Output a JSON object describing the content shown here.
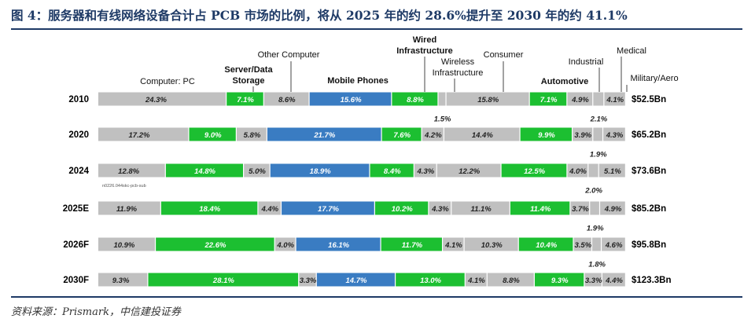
{
  "title": "图 4：服务器和有线网络设备合计占 PCB 市场的比例，将从 2025 年的约 28.6%提升至 2030 年的约 41.1%",
  "source": "资料来源：Prismark，中信建投证券",
  "watermark_note": "n0226.044skc-pcb-sub",
  "colors": {
    "gray": "#c0c0c0",
    "green": "#1cbf31",
    "blue": "#3a7cc2",
    "title": "#1e3a66"
  },
  "chart_data": {
    "type": "bar",
    "orientation": "horizontal",
    "stacked": "percent",
    "categories": [
      "Computer: PC",
      "Server/Data Storage",
      "Other Computer",
      "Mobile Phones",
      "Wired Infrastructure",
      "Wireless Infrastructure",
      "Consumer",
      "Automotive",
      "Industrial",
      "Medical",
      "Military/Aero"
    ],
    "category_colors": [
      "gray",
      "green",
      "gray",
      "blue",
      "green",
      "gray",
      "gray",
      "green",
      "gray",
      "gray",
      "gray"
    ],
    "bold_categories": [
      "Server/Data Storage",
      "Mobile Phones",
      "Wired Infrastructure",
      "Automotive"
    ],
    "rows": [
      {
        "year": "2010",
        "total": "$52.5Bn",
        "values": [
          24.3,
          7.1,
          8.6,
          15.6,
          8.8,
          1.5,
          15.8,
          7.1,
          4.9,
          2.1,
          4.1
        ],
        "labels": [
          "24.3%",
          "7.1%",
          "8.6%",
          "15.6%",
          "8.8%",
          "1.5%",
          "15.8%",
          "7.1%",
          "4.9%",
          "2.1%",
          "4.1%"
        ]
      },
      {
        "year": "2020",
        "total": "$65.2Bn",
        "values": [
          17.2,
          9.0,
          5.8,
          21.7,
          7.6,
          4.2,
          14.4,
          9.9,
          3.9,
          1.9,
          4.3
        ],
        "labels": [
          "17.2%",
          "9.0%",
          "5.8%",
          "21.7%",
          "7.6%",
          "4.2%",
          "14.4%",
          "9.9%",
          "3.9%",
          "1.9%",
          "4.3%"
        ]
      },
      {
        "year": "2024",
        "total": "$73.6Bn",
        "values": [
          12.8,
          14.8,
          5.0,
          18.9,
          8.4,
          4.3,
          12.2,
          12.5,
          4.0,
          2.0,
          5.1
        ],
        "labels": [
          "12.8%",
          "14.8%",
          "5.0%",
          "18.9%",
          "8.4%",
          "4.3%",
          "12.2%",
          "12.5%",
          "4.0%",
          "2.0%",
          "5.1%"
        ]
      },
      {
        "year": "2025E",
        "total": "$85.2Bn",
        "values": [
          11.9,
          18.4,
          4.4,
          17.7,
          10.2,
          4.3,
          11.1,
          11.4,
          3.7,
          1.9,
          4.9
        ],
        "labels": [
          "11.9%",
          "18.4%",
          "4.4%",
          "17.7%",
          "10.2%",
          "4.3%",
          "11.1%",
          "11.4%",
          "3.7%",
          "1.9%",
          "4.9%"
        ]
      },
      {
        "year": "2026F",
        "total": "$95.8Bn",
        "values": [
          10.9,
          22.6,
          4.0,
          16.1,
          11.7,
          4.1,
          10.3,
          10.4,
          3.5,
          1.8,
          4.6
        ],
        "labels": [
          "10.9%",
          "22.6%",
          "4.0%",
          "16.1%",
          "11.7%",
          "4.1%",
          "10.3%",
          "10.4%",
          "3.5%",
          "1.8%",
          "4.6%"
        ]
      },
      {
        "year": "2030F",
        "total": "$123.3Bn",
        "values": [
          9.3,
          28.1,
          3.3,
          14.7,
          13.0,
          4.1,
          8.8,
          9.3,
          3.3,
          0,
          4.4
        ],
        "labels": [
          "9.3%",
          "28.1%",
          "3.3%",
          "14.7%",
          "13.0%",
          "4.1%",
          "8.8%",
          "9.3%",
          "3.3%",
          "",
          "4.4%"
        ]
      }
    ]
  }
}
